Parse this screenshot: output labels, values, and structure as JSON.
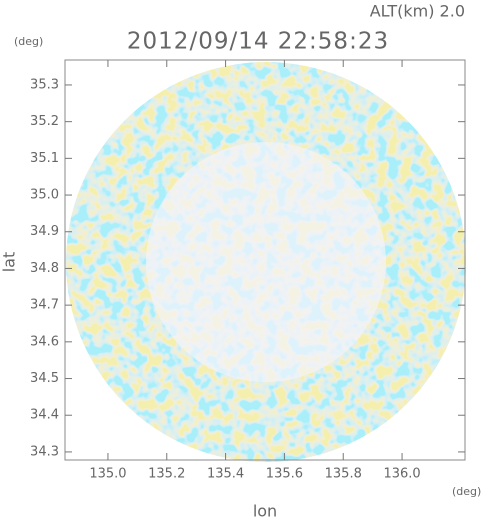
{
  "chart_data": {
    "type": "radar-map",
    "title": "2012/09/14 22:58:23",
    "annotation": "ALT(km) 2.0",
    "y_unit": "(deg)",
    "x_unit": "(deg)",
    "xlabel": "lon",
    "ylabel": "lat",
    "xlim": [
      134.854,
      136.214
    ],
    "ylim": [
      34.278,
      35.368
    ],
    "xticks": [
      {
        "value": 135,
        "label": "135.0"
      },
      135.2,
      135.4,
      135.6,
      135.8,
      {
        "value": 136,
        "label": "136.0"
      }
    ],
    "yticks": [
      34.3,
      34.4,
      34.5,
      34.6,
      34.7,
      34.8,
      34.9,
      {
        "value": 35,
        "label": "35.0"
      },
      35.1,
      35.2,
      35.3
    ]
  }
}
